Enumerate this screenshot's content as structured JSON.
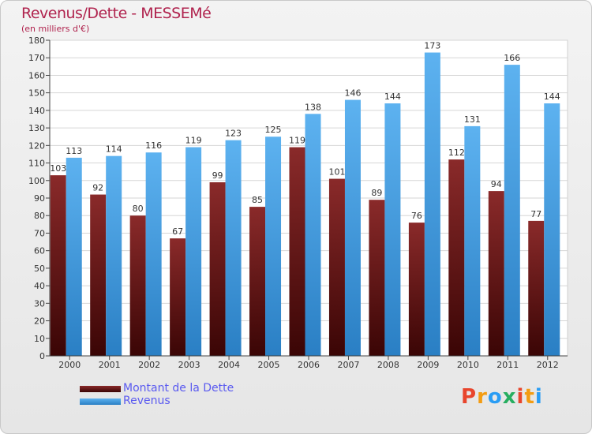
{
  "chart_data": {
    "type": "bar",
    "title": "Revenus/Dette - MESSEMé",
    "subtitle": "(en milliers d'€)",
    "categories": [
      "2000",
      "2001",
      "2002",
      "2003",
      "2004",
      "2005",
      "2006",
      "2007",
      "2008",
      "2009",
      "2010",
      "2011",
      "2012"
    ],
    "series": [
      {
        "name": "Montant de la Dette",
        "color": "#7b1a1a",
        "values": [
          103,
          92,
          80,
          67,
          99,
          85,
          119,
          101,
          89,
          76,
          112,
          94,
          77
        ]
      },
      {
        "name": "Revenus",
        "color": "#4aa3e8",
        "values": [
          113,
          114,
          116,
          119,
          123,
          125,
          138,
          146,
          144,
          173,
          131,
          166,
          144
        ]
      }
    ],
    "ylim": [
      0,
      180
    ],
    "ytick_step": 10,
    "grid": true,
    "xlabel": "",
    "ylabel": ""
  },
  "logo": {
    "letters": [
      "P",
      "r",
      "o",
      "x",
      "i",
      "t",
      "i"
    ],
    "colors": [
      "#e8452c",
      "#f39c12",
      "#2a9df4",
      "#27ae60",
      "#e8452c",
      "#f39c12",
      "#2a9df4"
    ]
  }
}
